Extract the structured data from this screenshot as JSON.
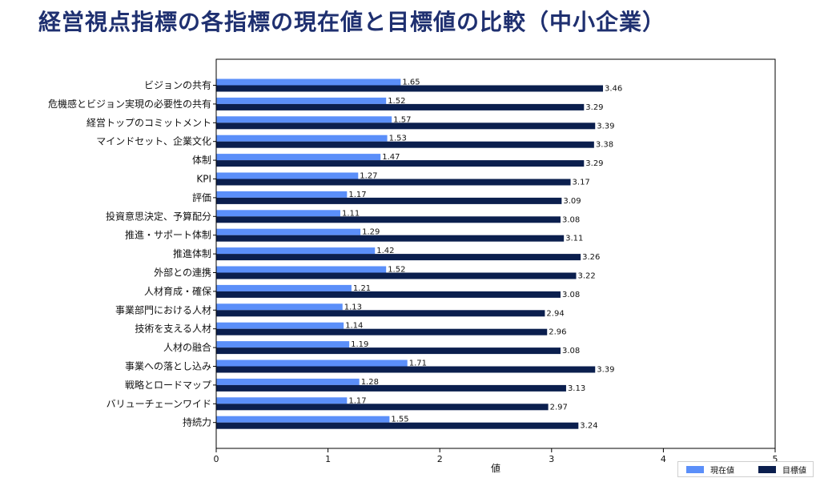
{
  "title": "経営視点指標の各指標の現在値と目標値の比較（中小企業）",
  "colors": {
    "current": "#5b8ff9",
    "target": "#0b1f4e",
    "title": "#1f3070"
  },
  "chart_data": {
    "type": "bar",
    "orientation": "horizontal",
    "categories": [
      "ビジョンの共有",
      "危機感とビジョン実現の必要性の共有",
      "経営トップのコミットメント",
      "マインドセット、企業文化",
      "体制",
      "KPI",
      "評価",
      "投資意思決定、予算配分",
      "推進・サポート体制",
      "推進体制",
      "外部との連携",
      "人材育成・確保",
      "事業部門における人材",
      "技術を支える人材",
      "人材の融合",
      "事業への落とし込み",
      "戦略とロードマップ",
      "バリューチェーンワイド",
      "持続力"
    ],
    "series": [
      {
        "name": "現在値",
        "values": [
          1.65,
          1.52,
          1.57,
          1.53,
          1.47,
          1.27,
          1.17,
          1.11,
          1.29,
          1.42,
          1.52,
          1.21,
          1.13,
          1.14,
          1.19,
          1.71,
          1.28,
          1.17,
          1.55
        ],
        "labels": [
          "1.65",
          "1.52",
          "1.57",
          "1.53",
          "1.47",
          "1.27",
          "1.17",
          "1.11",
          "1.29",
          "1.42",
          "1.52",
          "1.21",
          "1.13",
          "1.14",
          "1.19",
          "1.71",
          "1.28",
          "1.17",
          "1.55"
        ]
      },
      {
        "name": "目標値",
        "values": [
          3.46,
          3.29,
          3.39,
          3.38,
          3.29,
          3.17,
          3.09,
          3.08,
          3.11,
          3.26,
          3.22,
          3.08,
          2.94,
          2.96,
          3.08,
          3.39,
          3.13,
          2.97,
          3.24
        ],
        "labels": [
          "3.46",
          "3.29",
          "3.39",
          "3.38",
          "3.29",
          "3.17",
          "3.09",
          "3.08",
          "3.11",
          "3.26",
          "3.22",
          "3.08",
          "2.94",
          "2.96",
          "3.08",
          "3.39",
          "3.13",
          "2.97",
          "3.24"
        ]
      }
    ],
    "xlabel": "値",
    "xlim": [
      0,
      5
    ],
    "xticks": [
      0,
      1,
      2,
      3,
      4,
      5
    ],
    "xtick_labels": [
      "0",
      "1",
      "2",
      "3",
      "4",
      "5"
    ],
    "grid": false,
    "legend_position": "bottom-right"
  }
}
